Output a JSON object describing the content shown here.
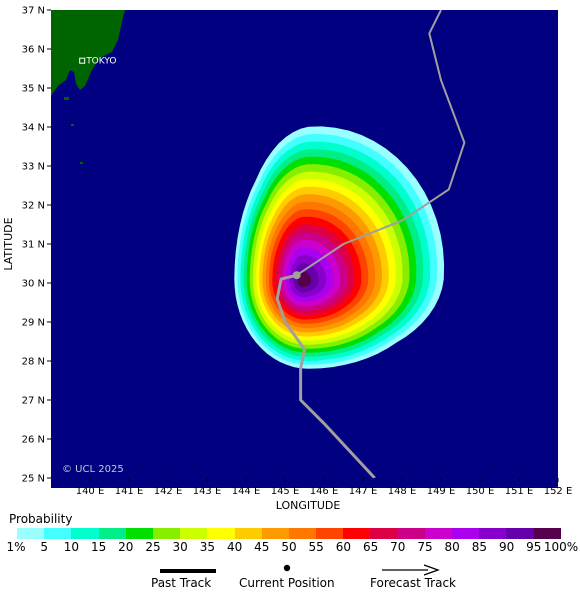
{
  "map": {
    "lon_range": [
      139,
      152
    ],
    "lat_range": [
      25,
      37
    ],
    "ocean_color": "#000080",
    "land_color": "#006400",
    "xlabel": "LONGITUDE",
    "ylabel": "LATITUDE",
    "lon_ticks": [
      "140 E",
      "141 E",
      "142 E",
      "143 E",
      "144 E",
      "145 E",
      "146 E",
      "147 E",
      "148 E",
      "149 E",
      "150 E",
      "151 E",
      "152 E"
    ],
    "lat_ticks": [
      "25 N",
      "26 N",
      "27 N",
      "28 N",
      "29 N",
      "30 N",
      "31 N",
      "32 N",
      "33 N",
      "34 N",
      "35 N",
      "36 N",
      "37 N"
    ],
    "city": {
      "name": "TOKYO",
      "lon": 139.8,
      "lat": 35.7
    },
    "copyright": "© UCL 2025",
    "current_position": {
      "lon": 145.3,
      "lat": 30.2
    },
    "past_track": [
      {
        "lon": 147.3,
        "lat": 25.0
      },
      {
        "lon": 146.0,
        "lat": 26.4
      },
      {
        "lon": 145.4,
        "lat": 27.0
      },
      {
        "lon": 145.4,
        "lat": 27.8
      },
      {
        "lon": 145.5,
        "lat": 28.3
      },
      {
        "lon": 145.0,
        "lat": 29.0
      },
      {
        "lon": 144.8,
        "lat": 29.6
      },
      {
        "lon": 144.9,
        "lat": 30.1
      },
      {
        "lon": 145.3,
        "lat": 30.2
      }
    ],
    "forecast_track": [
      {
        "lon": 145.3,
        "lat": 30.2
      },
      {
        "lon": 146.5,
        "lat": 31.0
      },
      {
        "lon": 148.0,
        "lat": 31.6
      },
      {
        "lon": 149.2,
        "lat": 32.4
      },
      {
        "lon": 149.6,
        "lat": 33.6
      },
      {
        "lon": 149.0,
        "lat": 35.2
      },
      {
        "lon": 148.7,
        "lat": 36.4
      },
      {
        "lon": 149.0,
        "lat": 37.0
      }
    ],
    "probability_field": {
      "center": {
        "lon": 145.6,
        "lat": 30.1
      },
      "outer_extent_deg": {
        "west": 1.9,
        "east": 3.2,
        "south": 2.3,
        "north": 3.6
      }
    }
  },
  "probability_legend": {
    "title": "Probability",
    "levels": [
      "1%",
      "5",
      "10",
      "15",
      "20",
      "25",
      "30",
      "35",
      "40",
      "45",
      "50",
      "55",
      "60",
      "65",
      "70",
      "75",
      "80",
      "85",
      "90",
      "95",
      "100%"
    ],
    "colors": [
      "#99ffff",
      "#44ffff",
      "#00ffcc",
      "#00ee88",
      "#00e000",
      "#88ee00",
      "#ccff00",
      "#ffff00",
      "#ffcc00",
      "#ff9900",
      "#ff7700",
      "#ff4400",
      "#ff0000",
      "#dd0044",
      "#cc0088",
      "#cc00cc",
      "#aa00ee",
      "#8800cc",
      "#6600aa",
      "#55004d"
    ]
  },
  "track_legend": {
    "past": "Past Track",
    "current": "Current Position",
    "forecast": "Forecast Track"
  }
}
